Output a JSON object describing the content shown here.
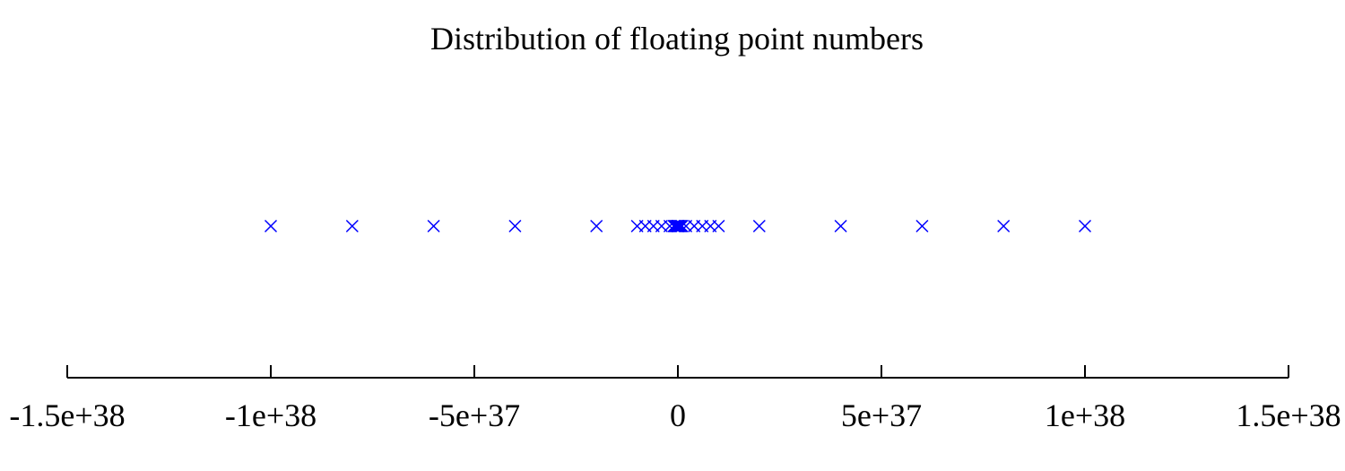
{
  "chart_data": {
    "type": "scatter",
    "title": "Distribution of floating point numbers",
    "xlabel": "",
    "ylabel": "",
    "xlim": [
      -1.5e+38,
      1.5e+38
    ],
    "x_ticks": [
      {
        "value": -1.5e+38,
        "label": "-1.5e+38"
      },
      {
        "value": -1e+38,
        "label": "-1e+38"
      },
      {
        "value": -5e+37,
        "label": "-5e+37"
      },
      {
        "value": 0,
        "label": "0"
      },
      {
        "value": 5e+37,
        "label": "5e+37"
      },
      {
        "value": 1e+38,
        "label": "1e+38"
      },
      {
        "value": 1.5e+38,
        "label": "1.5e+38"
      }
    ],
    "grid": false,
    "legend": "none",
    "marker": "x",
    "series": [
      {
        "color": "#0000ff",
        "x": [
          -1e+38,
          -8e+37,
          -6e+37,
          -4e+37,
          -2e+37,
          -1e+37,
          -8e+36,
          -6e+36,
          -4e+36,
          -2e+36,
          -1e+36,
          -8e+35,
          -6e+35,
          -4e+35,
          -2e+35,
          -1e+35,
          -1e+34,
          -1e+33,
          0,
          1e+33,
          1e+34,
          1e+35,
          2e+35,
          4e+35,
          6e+35,
          8e+35,
          1e+36,
          2e+36,
          4e+36,
          6e+36,
          8e+36,
          1e+37,
          2e+37,
          4e+37,
          6e+37,
          8e+37,
          1e+38
        ]
      }
    ]
  }
}
